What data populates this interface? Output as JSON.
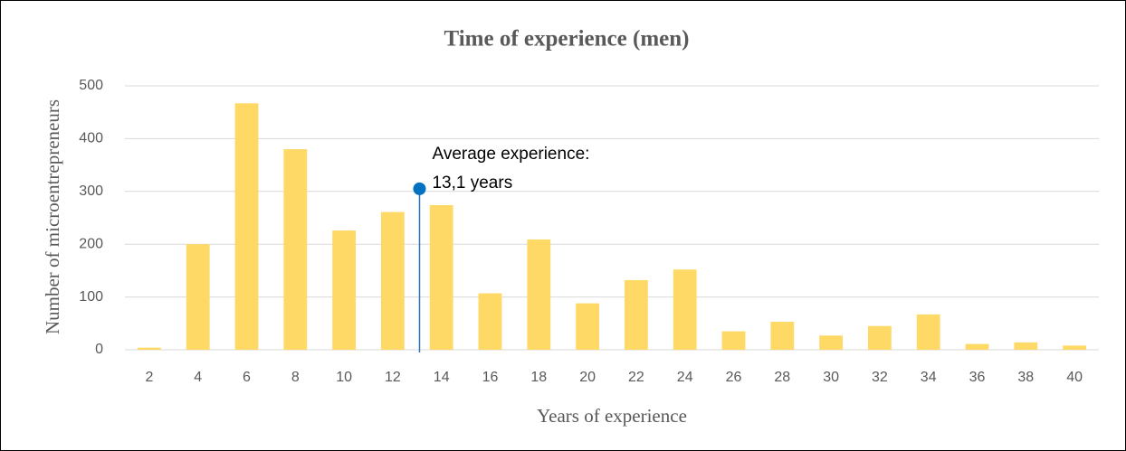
{
  "chart_data": {
    "type": "bar",
    "title": "Time of experience (men)",
    "x_label": "Years of experience",
    "y_label": "Number of microentrepreneurs",
    "categories": [
      "2",
      "4",
      "6",
      "8",
      "10",
      "12",
      "14",
      "16",
      "18",
      "20",
      "22",
      "24",
      "26",
      "28",
      "30",
      "32",
      "34",
      "36",
      "38",
      "40"
    ],
    "values": [
      4,
      200,
      467,
      380,
      226,
      261,
      274,
      107,
      209,
      88,
      132,
      152,
      35,
      53,
      27,
      45,
      67,
      11,
      14,
      8
    ],
    "color": "#ffd966",
    "ylim": [
      0,
      500
    ],
    "yticks": [
      0,
      100,
      200,
      300,
      400,
      500
    ],
    "grid": true,
    "annotation": {
      "x": 13.1,
      "y": 305,
      "color": "#0070c0",
      "text": [
        "Average experience:",
        "13,1 years"
      ]
    }
  }
}
